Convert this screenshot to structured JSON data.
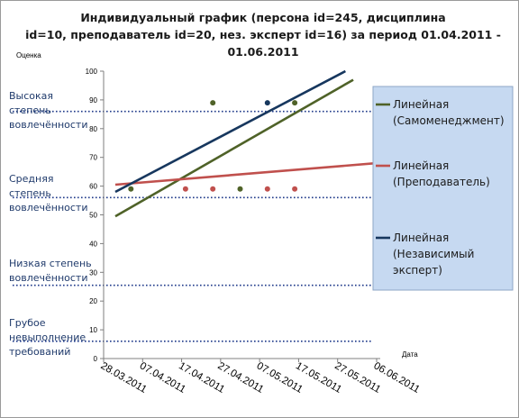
{
  "chart_data": {
    "type": "scatter",
    "title_lines": [
      "Индивидуальный график (персона id=245, дисциплина",
      "id=10, преподаватель id=20, нез. эксперт id=16) за период 01.04.2011 -",
      "01.06.2011"
    ],
    "ylabel": "Оценка",
    "xlabel": "Дата",
    "ylim": [
      0,
      100
    ],
    "y_ticks": [
      0,
      10,
      20,
      30,
      40,
      50,
      60,
      70,
      80,
      90,
      100
    ],
    "x_tick_labels": [
      "28.03.2011",
      "07.04.2011",
      "17.04.2011",
      "27.04.2011",
      "07.05.2011",
      "17.05.2011",
      "27.05.2011",
      "06.06.2011"
    ],
    "xlim": [
      "2011-03-28",
      "2011-06-06"
    ],
    "zones": [
      {
        "label_lines": [
          "Высокая",
          "степень",
          "вовлечённости"
        ],
        "threshold": 86
      },
      {
        "label_lines": [
          "Средняя",
          "степень",
          "вовлечённости"
        ],
        "threshold": 56
      },
      {
        "label_lines": [
          "Низкая степень",
          "вовлечённости"
        ],
        "threshold": 25.5
      },
      {
        "label_lines": [
          "Грубое",
          "невыполнение",
          "требований"
        ],
        "threshold": 6
      }
    ],
    "series": [
      {
        "name": "Линейная (Самоменеджмент)",
        "legend_lines": [
          "Линейная",
          "(Самоменеджмент)"
        ],
        "color": "#4f6228",
        "points": [
          {
            "x": "2011-04-04",
            "y": 59
          },
          {
            "x": "2011-04-25",
            "y": 89
          },
          {
            "x": "2011-05-02",
            "y": 59
          },
          {
            "x": "2011-05-16",
            "y": 89
          }
        ],
        "trend": {
          "from": {
            "x": "2011-03-31",
            "y": 49.5
          },
          "to": {
            "x": "2011-05-31",
            "y": 97
          }
        }
      },
      {
        "name": "Линейная (Преподаватель)",
        "legend_lines": [
          "Линейная",
          "(Преподаватель)"
        ],
        "color": "#c0504d",
        "points": [
          {
            "x": "2011-04-18",
            "y": 59
          },
          {
            "x": "2011-04-25",
            "y": 59
          },
          {
            "x": "2011-05-09",
            "y": 59
          },
          {
            "x": "2011-05-16",
            "y": 59
          }
        ],
        "trend": {
          "from": {
            "x": "2011-03-31",
            "y": 60.5
          },
          "to": {
            "x": "2011-06-06",
            "y": 68
          }
        }
      },
      {
        "name": "Линейная (Независимый эксперт)",
        "legend_lines": [
          "Линейная",
          "(Независимый",
          "эксперт)"
        ],
        "color": "#17375e",
        "points": [
          {
            "x": "2011-05-09",
            "y": 89
          }
        ],
        "trend": {
          "from": {
            "x": "2011-03-31",
            "y": 58
          },
          "to": {
            "x": "2011-05-29",
            "y": 100
          }
        }
      }
    ],
    "legend_position": "right",
    "grid": false
  }
}
